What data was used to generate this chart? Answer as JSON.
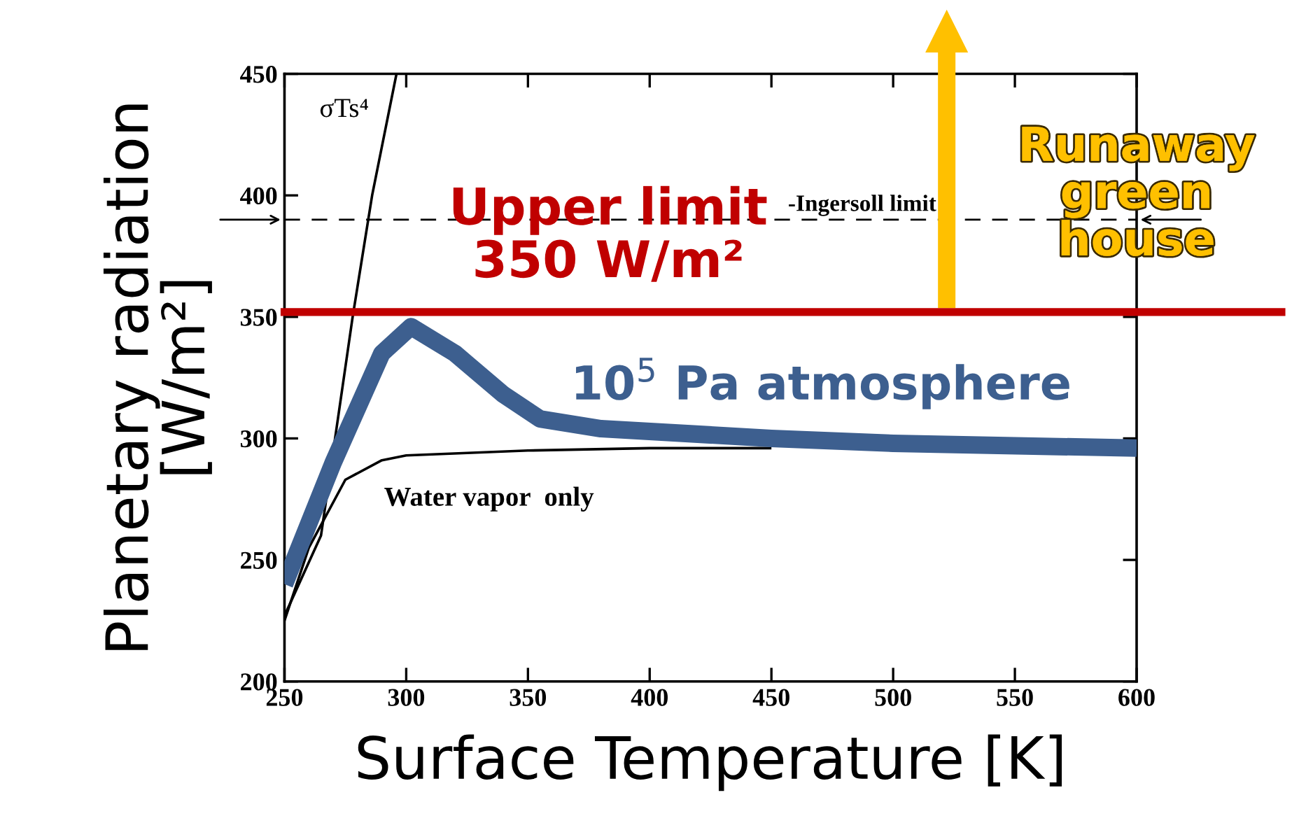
{
  "chart_data": {
    "type": "line",
    "xlabel": "Surface Temperature [K]",
    "ylabel": "Planetary radiation\n[W/m²]",
    "xlim": [
      250,
      600
    ],
    "ylim": [
      200,
      450
    ],
    "xticks": [
      250,
      300,
      350,
      400,
      450,
      500,
      550,
      600
    ],
    "yticks": [
      200,
      250,
      300,
      350,
      400,
      450
    ],
    "grid": false,
    "legend": false,
    "marker": "none",
    "series": [
      {
        "color": "#000000",
        "line_style": "solid",
        "x": [
          250,
          265,
          278,
          286,
          296
        ],
        "values": [
          227,
          260,
          350,
          400,
          450
        ]
      },
      {
        "color": "#000000",
        "line_style": "solid",
        "x": [
          250,
          260,
          275,
          290,
          300,
          350,
          400,
          450
        ],
        "values": [
          225,
          255,
          283,
          291,
          293,
          295,
          296,
          296
        ]
      },
      {
        "color": "#3d5f8f",
        "line_style": "solid",
        "x": [
          250,
          270,
          290,
          302,
          320,
          340,
          355,
          380,
          450,
          500,
          600
        ],
        "values": [
          240,
          290,
          335,
          346,
          335,
          318,
          308,
          304,
          300,
          298,
          296
        ]
      }
    ],
    "ref_lines": [
      {
        "axis": "y",
        "value": 390,
        "label": "-Ingersoll limit",
        "color": "#000000",
        "line_style": "dashed"
      },
      {
        "axis": "y",
        "value": 352,
        "label": "Upper limit\n350 W/m²",
        "color": "#c00000",
        "line_style": "solid"
      }
    ],
    "annotations": [
      "σTs⁴",
      "Water vapor  only",
      "10$^{5}$ Pa atmosphere",
      {
        "text": "Runaway\ngreen\nhouse",
        "x": 522,
        "y": 352
      }
    ]
  }
}
